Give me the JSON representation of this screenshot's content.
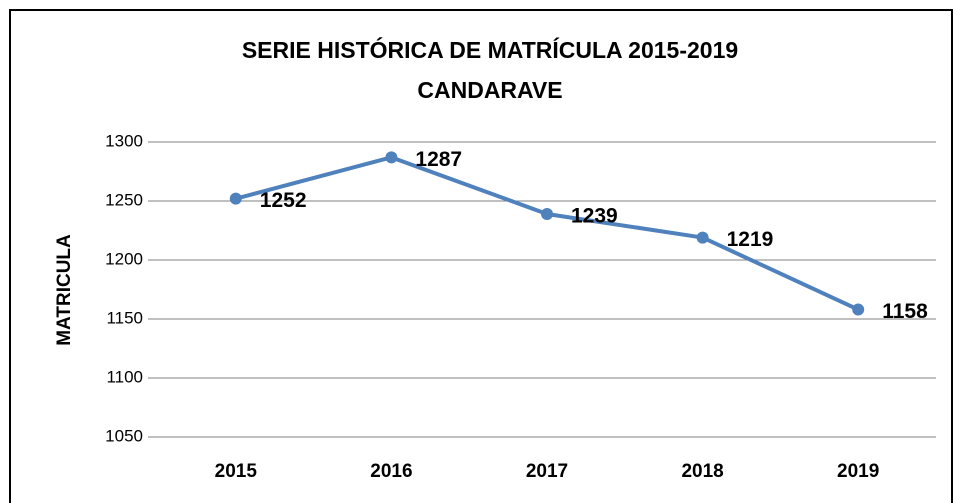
{
  "chart_data": {
    "type": "line",
    "title": [
      "SERIE HISTÓRICA DE MATRÍCULA 2015-2019",
      "CANDARAVE"
    ],
    "y_label": "MATRICULA",
    "categories": [
      "2015",
      "2016",
      "2017",
      "2018",
      "2019"
    ],
    "values": [
      1252,
      1287,
      1239,
      1219,
      1158
    ],
    "color": "#4f81bd",
    "ylim": [
      1050,
      1300
    ],
    "yticks": [
      1050,
      1100,
      1150,
      1200,
      1250,
      1300
    ],
    "grid": true
  }
}
